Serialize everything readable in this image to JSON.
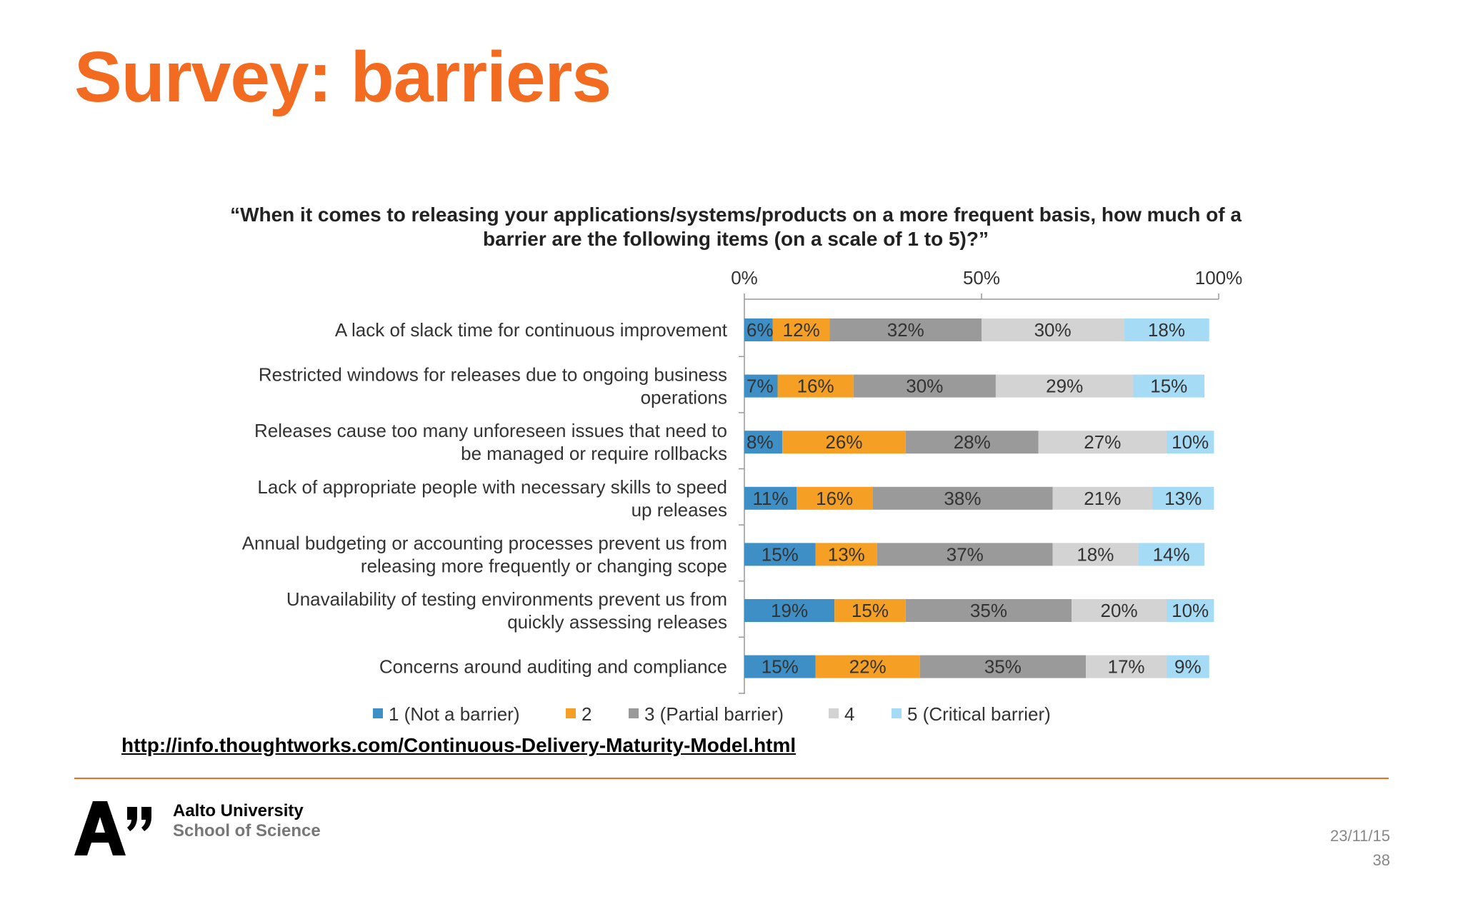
{
  "slide": {
    "title": "Survey: barriers",
    "source_url": "http://info.thoughtworks.com/Continuous-Delivery-Maturity-Model.html",
    "university": "Aalto University",
    "school": "School of Science",
    "date": "23/11/15",
    "page_number": "38",
    "accent_color": "#f26b21"
  },
  "chart_data": {
    "type": "bar",
    "orientation": "horizontal",
    "stacked": true,
    "title": "“When it comes to releasing your applications/systems/products on a more frequent basis, how much of a barrier are the following items (on a scale of 1 to 5)?”",
    "x_ticks": [
      "0%",
      "50%",
      "100%"
    ],
    "xlim": [
      0,
      100
    ],
    "legend_position": "bottom",
    "categories": [
      "A lack of slack time for continuous improvement",
      "Restricted windows for releases due to ongoing business operations",
      "Releases cause too many unforeseen issues that need to be managed or require rollbacks",
      "Lack of appropriate people with necessary skills to speed up releases",
      "Annual budgeting or accounting processes prevent us from releasing more frequently or changing scope",
      "Unavailability of testing environments prevent us from quickly assessing releases",
      "Concerns around auditing and compliance"
    ],
    "category_lines": [
      [
        "A lack of slack time for continuous improvement"
      ],
      [
        "Restricted windows for releases due to ongoing business",
        "operations"
      ],
      [
        "Releases cause too many unforeseen issues that need to",
        "be managed or require rollbacks"
      ],
      [
        "Lack of appropriate people with necessary skills to speed",
        "up releases"
      ],
      [
        "Annual budgeting or accounting processes prevent us from",
        "releasing more frequently or changing scope"
      ],
      [
        "Unavailability of testing environments prevent us from",
        "quickly assessing releases"
      ],
      [
        "Concerns around auditing and compliance"
      ]
    ],
    "series": [
      {
        "name": "1 (Not a barrier)",
        "color": "#3d8fc6",
        "values": [
          6,
          7,
          8,
          11,
          15,
          19,
          15
        ]
      },
      {
        "name": "2",
        "color": "#f5a024",
        "values": [
          12,
          16,
          26,
          16,
          13,
          15,
          22
        ]
      },
      {
        "name": "3 (Partial barrier)",
        "color": "#9a9a9a",
        "values": [
          32,
          30,
          28,
          38,
          37,
          35,
          35
        ]
      },
      {
        "name": "4",
        "color": "#d3d3d3",
        "values": [
          30,
          29,
          27,
          21,
          18,
          20,
          17
        ]
      },
      {
        "name": "5 (Critical barrier)",
        "color": "#a6dbf5",
        "values": [
          18,
          15,
          10,
          13,
          14,
          10,
          9
        ]
      }
    ],
    "value_suffix": "%"
  }
}
